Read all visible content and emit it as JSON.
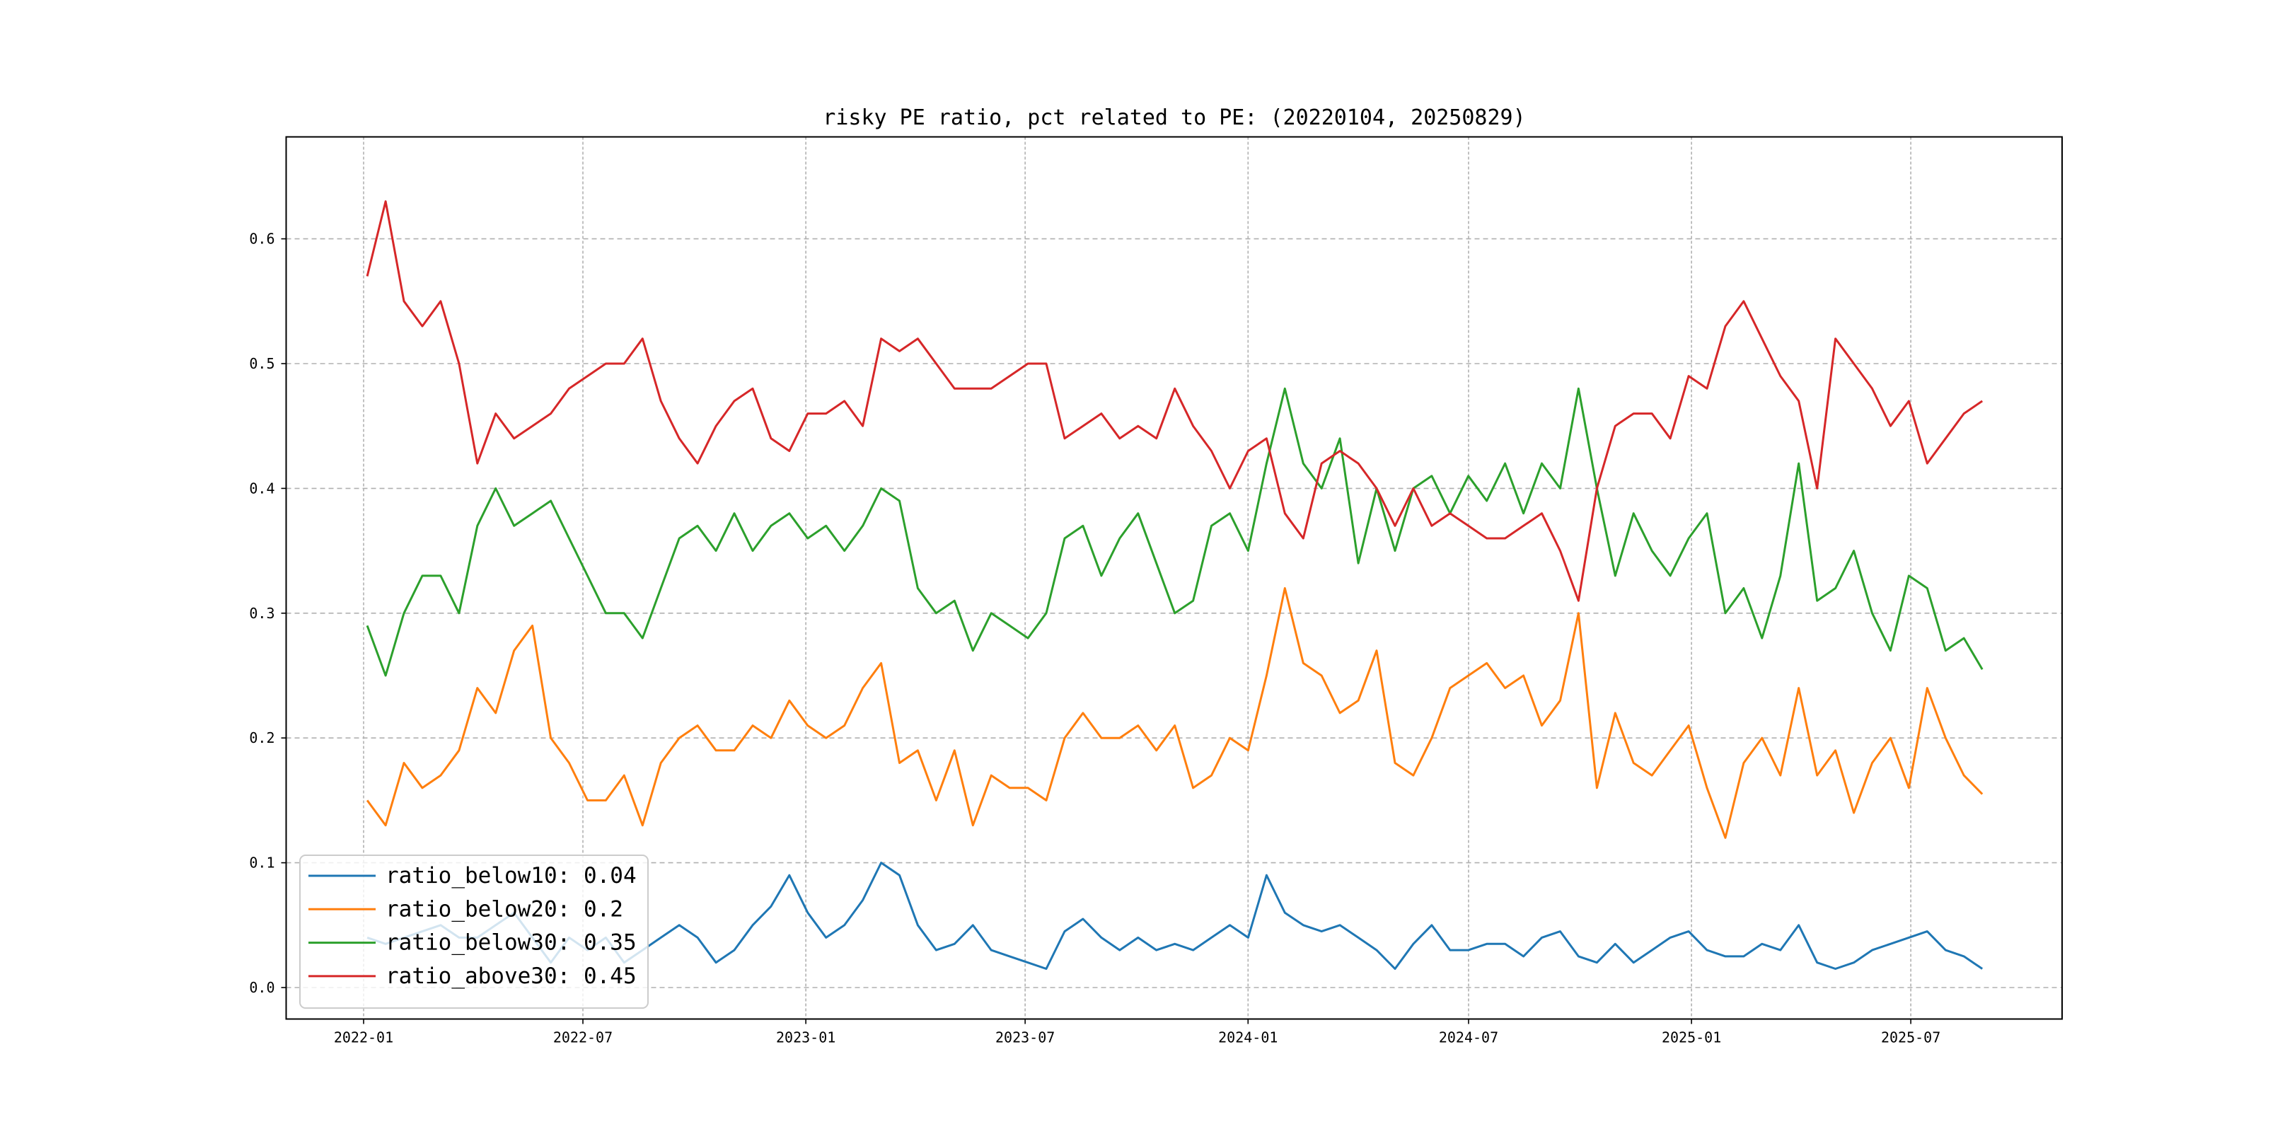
{
  "chart_data": {
    "type": "line",
    "title": "risky PE ratio, pct related to PE: (20220104, 20250829)",
    "xlabel": "",
    "ylabel": "",
    "x_start": "2022-01-04",
    "x_end": "2025-08-29",
    "sampling": "semi-monthly approximation of daily series",
    "ylim": [
      -0.025,
      0.682
    ],
    "grid": true,
    "legend_position": "lower-left",
    "yticks": [
      {
        "value": 0.0,
        "label": "0.0"
      },
      {
        "value": 0.1,
        "label": "0.1"
      },
      {
        "value": 0.2,
        "label": "0.2"
      },
      {
        "value": 0.3,
        "label": "0.3"
      },
      {
        "value": 0.4,
        "label": "0.4"
      },
      {
        "value": 0.5,
        "label": "0.5"
      },
      {
        "value": 0.6,
        "label": "0.6"
      }
    ],
    "xticks": [
      {
        "date": "2022-01-01",
        "label": "2022-01"
      },
      {
        "date": "2022-07-01",
        "label": "2022-07"
      },
      {
        "date": "2023-01-01",
        "label": "2023-01"
      },
      {
        "date": "2023-07-01",
        "label": "2023-07"
      },
      {
        "date": "2024-01-01",
        "label": "2024-01"
      },
      {
        "date": "2024-07-01",
        "label": "2024-07"
      },
      {
        "date": "2025-01-01",
        "label": "2025-01"
      },
      {
        "date": "2025-07-01",
        "label": "2025-07"
      }
    ],
    "series": [
      {
        "name": "ratio_below10",
        "legend": "ratio_below10: 0.04",
        "color": "#1f77b4",
        "values": [
          0.04,
          0.035,
          0.04,
          0.045,
          0.05,
          0.04,
          0.04,
          0.05,
          0.06,
          0.04,
          0.02,
          0.04,
          0.03,
          0.04,
          0.02,
          0.03,
          0.04,
          0.05,
          0.04,
          0.02,
          0.03,
          0.05,
          0.065,
          0.09,
          0.06,
          0.04,
          0.05,
          0.07,
          0.1,
          0.09,
          0.05,
          0.03,
          0.035,
          0.05,
          0.03,
          0.025,
          0.02,
          0.015,
          0.045,
          0.055,
          0.04,
          0.03,
          0.04,
          0.03,
          0.035,
          0.03,
          0.04,
          0.05,
          0.04,
          0.09,
          0.06,
          0.05,
          0.045,
          0.05,
          0.04,
          0.03,
          0.015,
          0.035,
          0.05,
          0.03,
          0.03,
          0.035,
          0.035,
          0.025,
          0.04,
          0.045,
          0.025,
          0.02,
          0.035,
          0.02,
          0.03,
          0.04,
          0.045,
          0.03,
          0.025,
          0.025,
          0.035,
          0.03,
          0.05,
          0.02,
          0.015,
          0.02,
          0.03,
          0.035,
          0.04,
          0.045,
          0.03,
          0.025,
          0.015
        ]
      },
      {
        "name": "ratio_below20",
        "legend": "ratio_below20: 0.2",
        "color": "#ff7f0e",
        "values": [
          0.15,
          0.13,
          0.18,
          0.16,
          0.17,
          0.19,
          0.24,
          0.22,
          0.27,
          0.29,
          0.2,
          0.18,
          0.15,
          0.15,
          0.17,
          0.13,
          0.18,
          0.2,
          0.21,
          0.19,
          0.19,
          0.21,
          0.2,
          0.23,
          0.21,
          0.2,
          0.21,
          0.24,
          0.26,
          0.18,
          0.19,
          0.15,
          0.19,
          0.13,
          0.17,
          0.16,
          0.16,
          0.15,
          0.2,
          0.22,
          0.2,
          0.2,
          0.21,
          0.19,
          0.21,
          0.16,
          0.17,
          0.2,
          0.19,
          0.25,
          0.32,
          0.26,
          0.25,
          0.22,
          0.23,
          0.27,
          0.18,
          0.17,
          0.2,
          0.24,
          0.25,
          0.26,
          0.24,
          0.25,
          0.21,
          0.23,
          0.3,
          0.16,
          0.22,
          0.18,
          0.17,
          0.19,
          0.21,
          0.16,
          0.12,
          0.18,
          0.2,
          0.17,
          0.24,
          0.17,
          0.19,
          0.14,
          0.18,
          0.2,
          0.16,
          0.24,
          0.2,
          0.17,
          0.155
        ]
      },
      {
        "name": "ratio_below30",
        "legend": "ratio_below30: 0.35",
        "color": "#2ca02c",
        "values": [
          0.29,
          0.25,
          0.3,
          0.33,
          0.33,
          0.3,
          0.37,
          0.4,
          0.37,
          0.38,
          0.39,
          0.36,
          0.33,
          0.3,
          0.3,
          0.28,
          0.32,
          0.36,
          0.37,
          0.35,
          0.38,
          0.35,
          0.37,
          0.38,
          0.36,
          0.37,
          0.35,
          0.37,
          0.4,
          0.39,
          0.32,
          0.3,
          0.31,
          0.27,
          0.3,
          0.29,
          0.28,
          0.3,
          0.36,
          0.37,
          0.33,
          0.36,
          0.38,
          0.34,
          0.3,
          0.31,
          0.37,
          0.38,
          0.35,
          0.42,
          0.48,
          0.42,
          0.4,
          0.44,
          0.34,
          0.4,
          0.35,
          0.4,
          0.41,
          0.38,
          0.41,
          0.39,
          0.42,
          0.38,
          0.42,
          0.4,
          0.48,
          0.4,
          0.33,
          0.38,
          0.35,
          0.33,
          0.36,
          0.38,
          0.3,
          0.32,
          0.28,
          0.33,
          0.42,
          0.31,
          0.32,
          0.35,
          0.3,
          0.27,
          0.33,
          0.32,
          0.27,
          0.28,
          0.255
        ]
      },
      {
        "name": "ratio_above30",
        "legend": "ratio_above30: 0.45",
        "color": "#d62728",
        "values": [
          0.57,
          0.63,
          0.55,
          0.53,
          0.55,
          0.5,
          0.42,
          0.46,
          0.44,
          0.45,
          0.46,
          0.48,
          0.49,
          0.5,
          0.5,
          0.52,
          0.47,
          0.44,
          0.42,
          0.45,
          0.47,
          0.48,
          0.44,
          0.43,
          0.46,
          0.46,
          0.47,
          0.45,
          0.52,
          0.51,
          0.52,
          0.5,
          0.48,
          0.48,
          0.48,
          0.49,
          0.5,
          0.5,
          0.44,
          0.45,
          0.46,
          0.44,
          0.45,
          0.44,
          0.48,
          0.45,
          0.43,
          0.4,
          0.43,
          0.44,
          0.38,
          0.36,
          0.42,
          0.43,
          0.42,
          0.4,
          0.37,
          0.4,
          0.37,
          0.38,
          0.37,
          0.36,
          0.36,
          0.37,
          0.38,
          0.35,
          0.31,
          0.4,
          0.45,
          0.46,
          0.46,
          0.44,
          0.49,
          0.48,
          0.53,
          0.55,
          0.52,
          0.49,
          0.47,
          0.4,
          0.52,
          0.5,
          0.48,
          0.45,
          0.47,
          0.42,
          0.44,
          0.46,
          0.47
        ]
      }
    ]
  }
}
